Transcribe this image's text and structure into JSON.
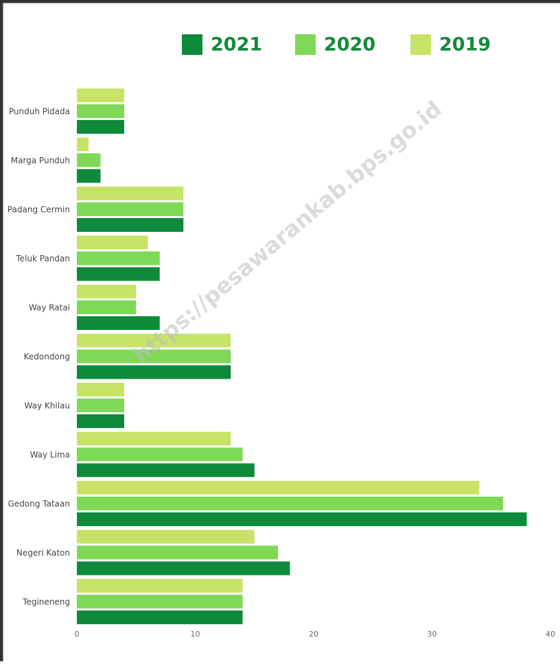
{
  "chart_data": {
    "type": "bar",
    "orientation": "horizontal",
    "categories": [
      "Punduh Pidada",
      "Marga Punduh",
      "Padang Cermin",
      "Teluk Pandan",
      "Way Ratai",
      "Kedondong",
      "Way Khilau",
      "Way Lima",
      "Gedong Tataan",
      "Negeri Katon",
      "Tegineneng"
    ],
    "series": [
      {
        "name": "2021",
        "color": "#0e8a3b",
        "values": [
          4,
          2,
          9,
          7,
          7,
          13,
          4,
          15,
          38,
          18,
          14
        ]
      },
      {
        "name": "2020",
        "color": "#7fd957",
        "values": [
          4,
          2,
          9,
          7,
          5,
          13,
          4,
          14,
          36,
          17,
          14
        ]
      },
      {
        "name": "2019",
        "color": "#c7e468",
        "values": [
          4,
          1,
          9,
          6,
          5,
          13,
          4,
          13,
          34,
          15,
          14
        ]
      }
    ],
    "xlim": [
      0,
      40
    ],
    "xticks": [
      0,
      10,
      20,
      30,
      40
    ],
    "grid": false,
    "legend": "top",
    "watermark": "https://pesawarankab.bps.go.id"
  }
}
